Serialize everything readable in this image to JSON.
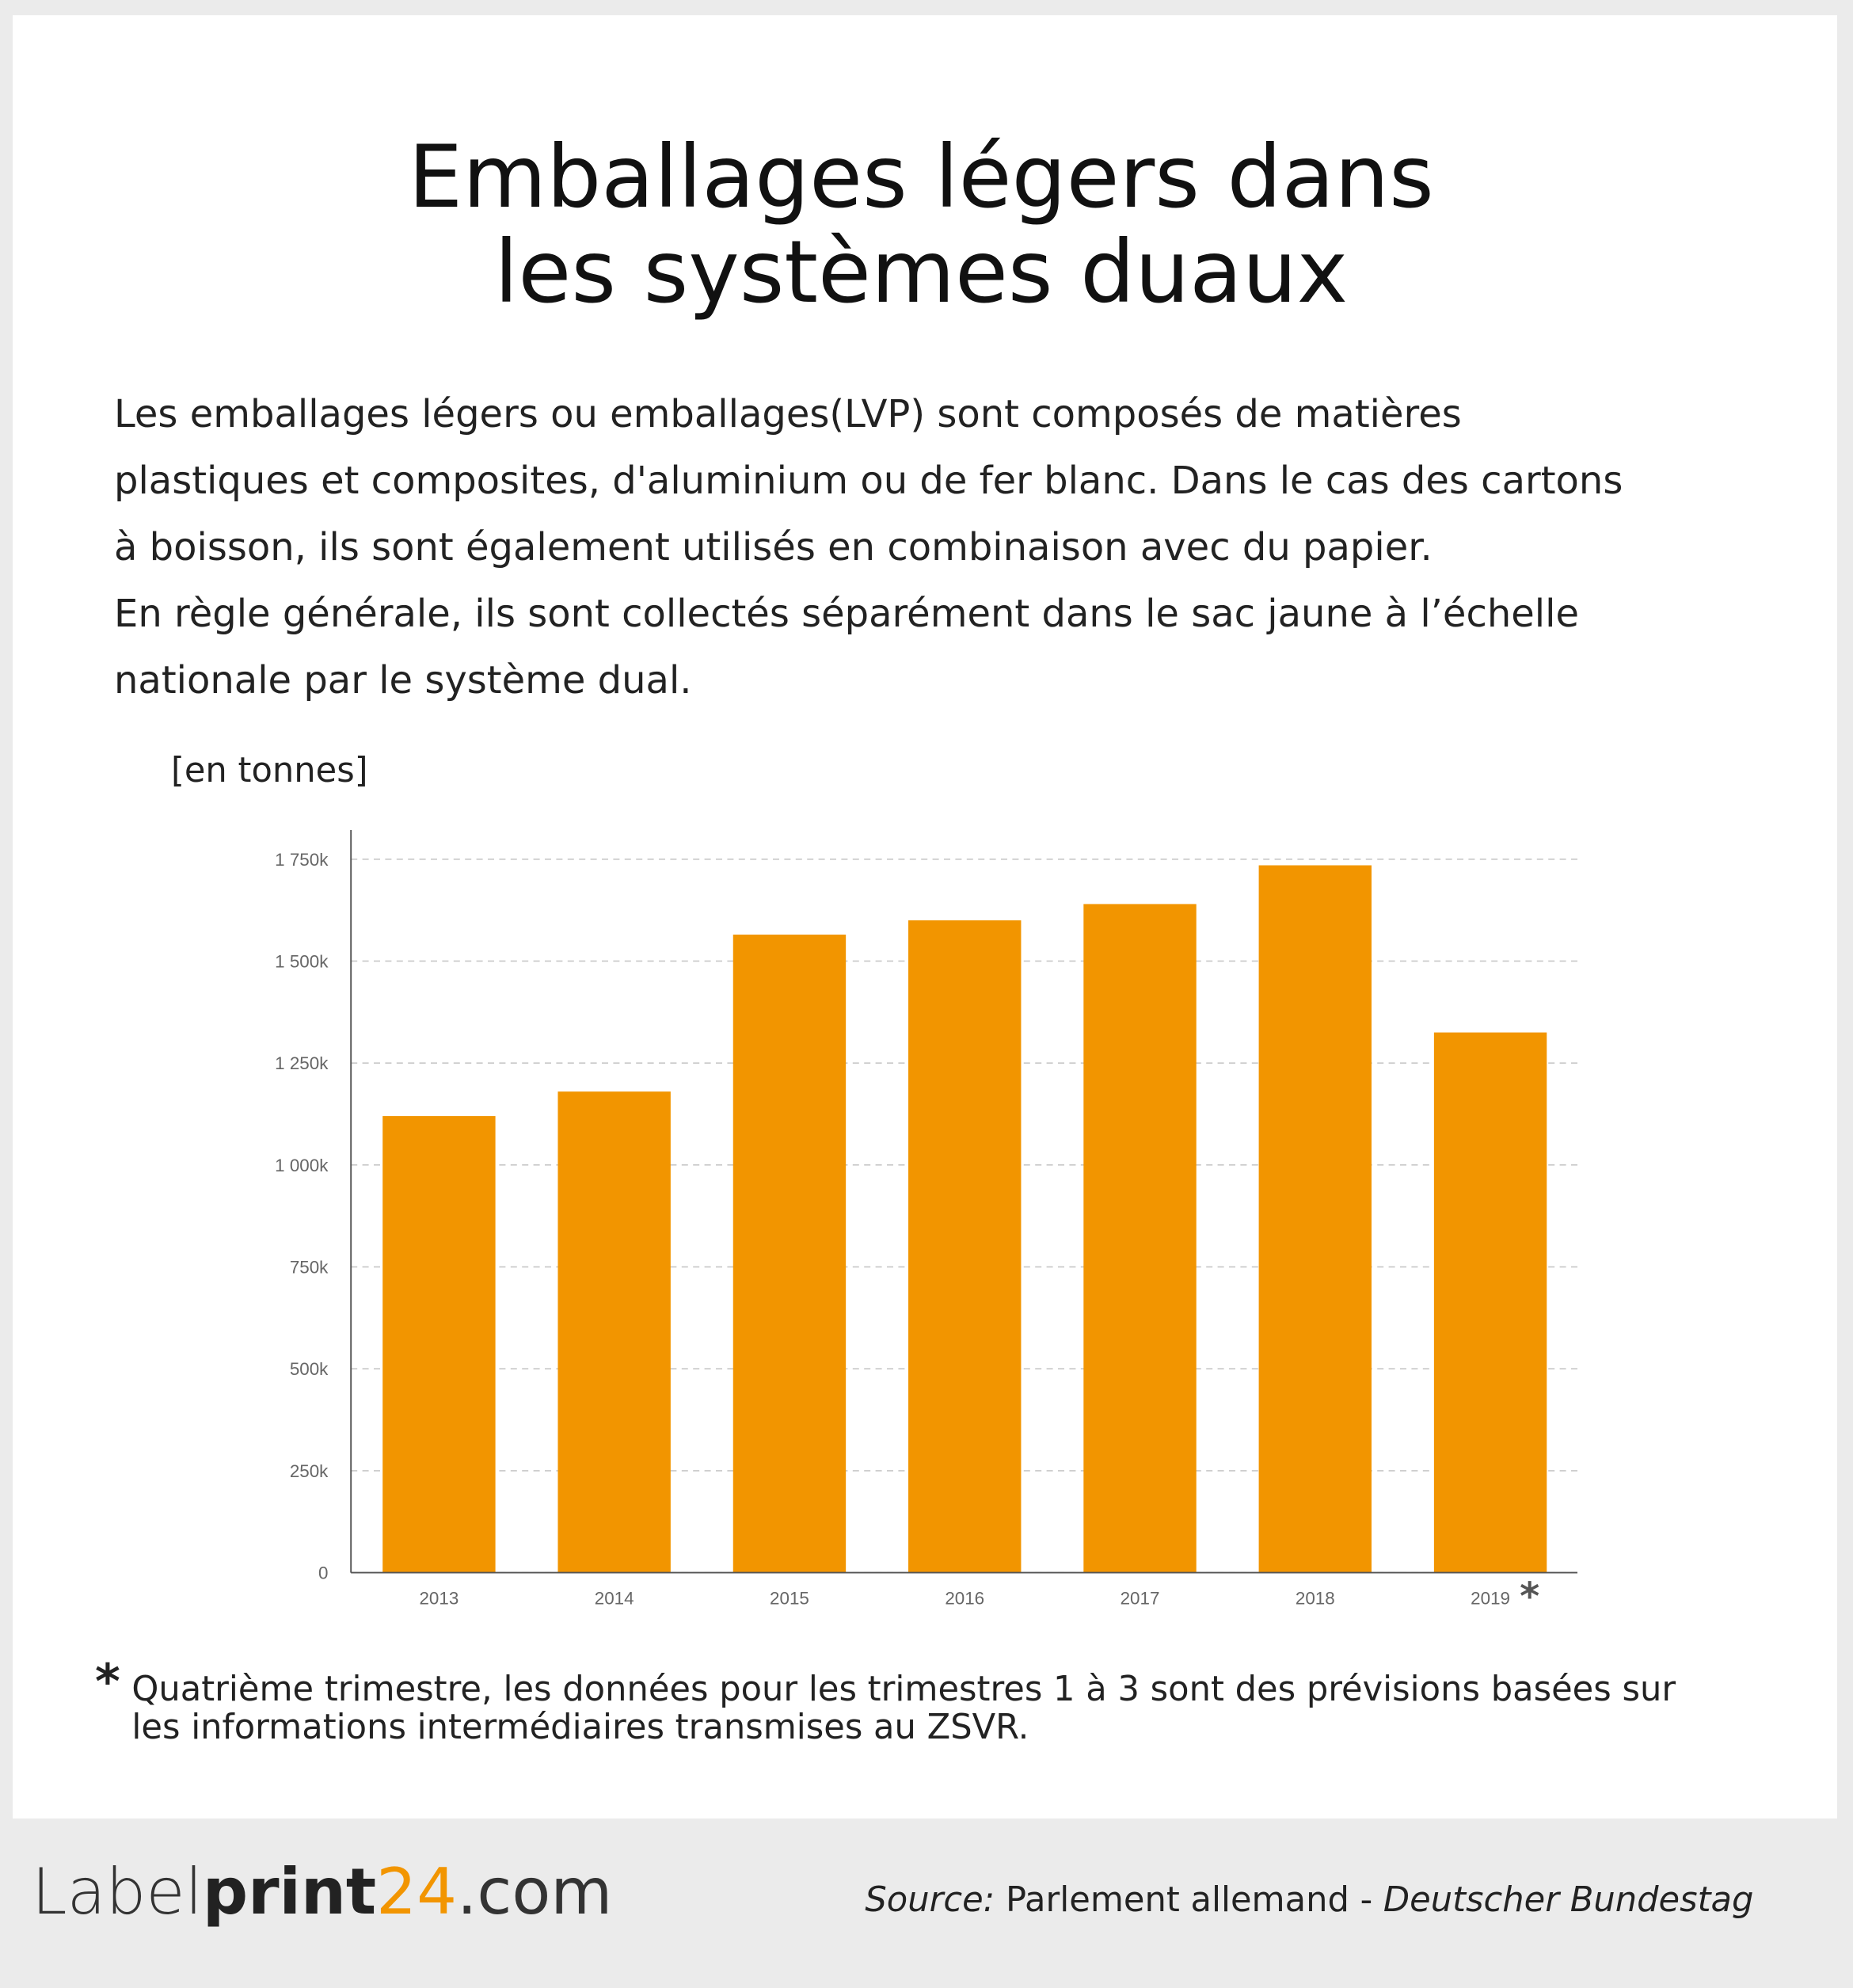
{
  "title_lines": [
    "Emballages légers dans",
    "les systèmes duaux"
  ],
  "description_lines": [
    "Les emballages légers ou emballages(LVP) sont composés de matières",
    "plastiques et composites, d'aluminium ou de fer blanc. Dans le cas des cartons",
    "à boisson, ils sont également utilisés en combinaison avec du papier.",
    "En règle générale, ils sont collectés séparément dans le sac jaune à l’échelle",
    "nationale par le système dual."
  ],
  "chart_data": {
    "type": "bar",
    "y_label": "[en tonnes]",
    "categories": [
      "2013",
      "2014",
      "2015",
      "2016",
      "2017",
      "2018",
      "2019"
    ],
    "values": [
      1120000,
      1180000,
      1565000,
      1600000,
      1640000,
      1735000,
      1325000
    ],
    "color": "#f29500",
    "ylim": [
      0,
      1820000
    ],
    "yticks": [
      0,
      {
        "value": 250000,
        "label": "250k"
      },
      {
        "value": 500000,
        "label": "500k"
      },
      {
        "value": 750000,
        "label": "750k"
      },
      {
        "value": 1000000,
        "label": "1 000k"
      },
      {
        "value": 1250000,
        "label": "1 250k"
      },
      {
        "value": 1500000,
        "label": "1 500k"
      },
      {
        "value": 1750000,
        "label": "1 750k"
      }
    ],
    "grid": true,
    "annotation": "*"
  },
  "footnote": {
    "marker": "*",
    "lines": [
      "Quatrième trimestre, les données pour les trimestres 1 à 3 sont des prévisions basées sur",
      "les informations intermédiaires transmises au ZSVR."
    ]
  },
  "footer": {
    "logo": [
      "Label",
      "print",
      "24",
      ".com"
    ],
    "source_label": "Source:",
    "source_text": "Parlement allemand -",
    "source_italic": "Deutscher Bundestag"
  }
}
